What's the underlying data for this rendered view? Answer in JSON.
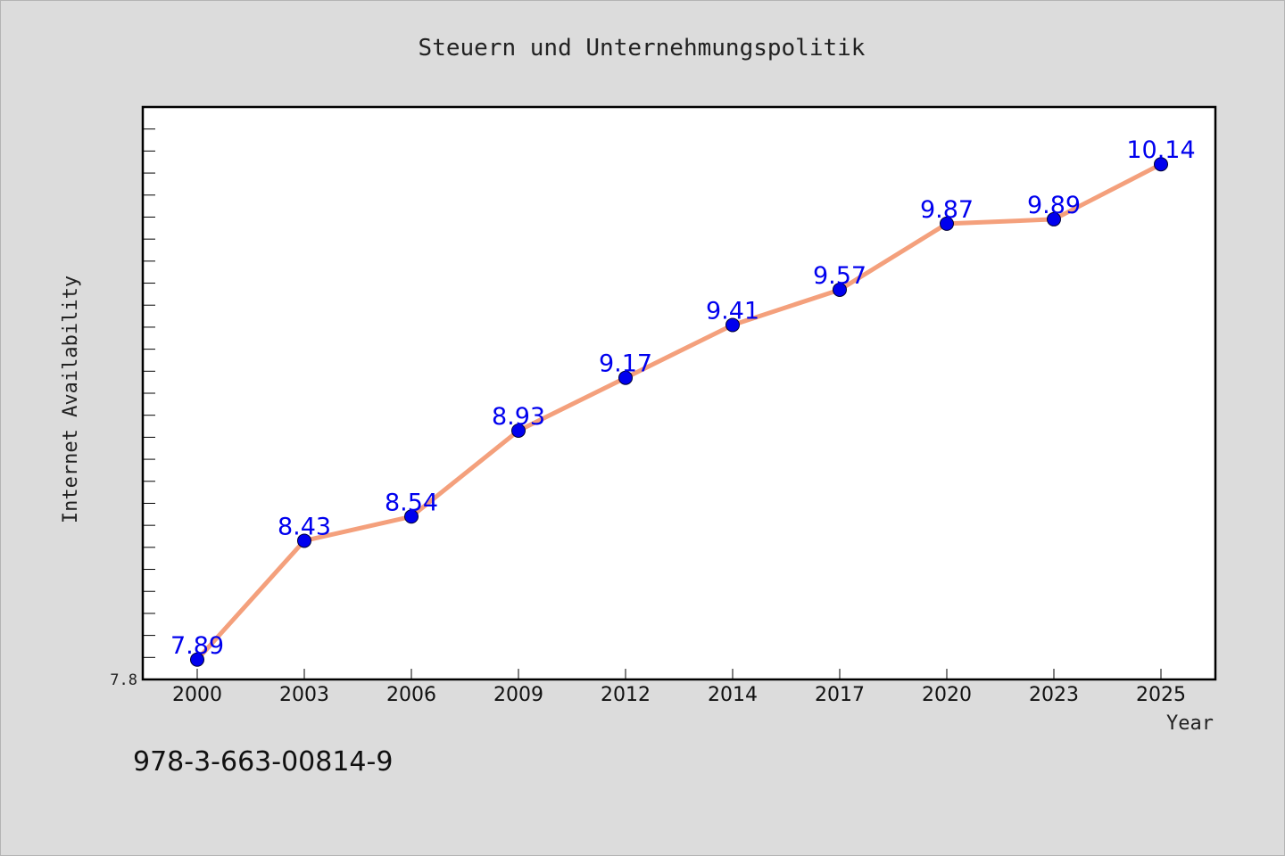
{
  "chart_data": {
    "type": "line",
    "title": "Steuern und Unternehmungspolitik",
    "xlabel": "Year",
    "ylabel": "Internet Availability",
    "categories": [
      "2000",
      "2003",
      "2006",
      "2009",
      "2012",
      "2014",
      "2017",
      "2020",
      "2023",
      "2025"
    ],
    "series": [
      {
        "values": [
          7.89,
          8.43,
          8.54,
          8.93,
          9.17,
          9.41,
          9.57,
          9.87,
          9.89,
          10.14
        ]
      }
    ],
    "data_labels": [
      "7.89",
      "8.43",
      "8.54",
      "8.93",
      "9.17",
      "9.41",
      "9.57",
      "9.87",
      "9.89",
      "10.14"
    ],
    "ylim": [
      7.8,
      10.4
    ],
    "y_tick_label": "7.8",
    "grid": false,
    "colors": {
      "line": "#f4a07c",
      "marker": "#0000ee",
      "data_label": "#0000ee",
      "plot_background": "#ffffff",
      "page_background": "#dcdcdc"
    }
  },
  "footer": {
    "isbn": "978-3-663-00814-9"
  }
}
